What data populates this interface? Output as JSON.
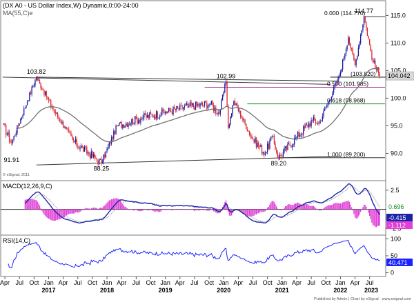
{
  "header": {
    "title": "(DX A0 - US Dollar Index,W) Dynamic,0:00-24:00",
    "ma_label": "MA(55,C)e",
    "copyright": "© eSignal, 2011"
  },
  "footer": {
    "published": "Published by Admin | Chart by eSignal · www.esignal.com"
  },
  "colors": {
    "up": "#1a1aa0",
    "down": "#e0242c",
    "ma": "#707070",
    "macd": "#1a23a6",
    "signal": "#a8a8a8",
    "hist": "#e040d8",
    "rsi": "#1a23ff",
    "fib500": "#a020a0",
    "fib618": "#1a8a1a",
    "trend": "#333333"
  },
  "chart_data": [
    {
      "type": "candlestick",
      "name": "price",
      "y_ticks": [
        90,
        95,
        100,
        105,
        110,
        115
      ],
      "ylim": [
        87.8,
        116.8
      ],
      "x_tick_labels": [
        "Apr",
        "Jul",
        "Oct",
        "Jan",
        "Apr",
        "Jul",
        "Oct",
        "Jan",
        "Apr",
        "Jul",
        "Oct",
        "Jan",
        "Apr",
        "Jul",
        "Oct",
        "Jan",
        "Apr",
        "Jul",
        "Oct",
        "Jan",
        "Apr",
        "Jul",
        "Oct",
        "Jan",
        "Apr",
        "Jul",
        "Oct",
        "Jan"
      ],
      "year_labels": [
        "2017",
        "2018",
        "2019",
        "2020",
        "2021",
        "2022",
        "2023"
      ],
      "last_price": "104.042",
      "pivots": [
        {
          "t": 0,
          "v": 95.2
        },
        {
          "t": 8,
          "v": 91.91
        },
        {
          "t": 22,
          "v": 99.5
        },
        {
          "t": 30,
          "v": 103.82
        },
        {
          "t": 45,
          "v": 98.0
        },
        {
          "t": 64,
          "v": 92.0
        },
        {
          "t": 82,
          "v": 89.2
        },
        {
          "t": 88,
          "v": 88.25
        },
        {
          "t": 102,
          "v": 95.0
        },
        {
          "t": 125,
          "v": 96.5
        },
        {
          "t": 145,
          "v": 97.5
        },
        {
          "t": 165,
          "v": 98.5
        },
        {
          "t": 185,
          "v": 99.0
        },
        {
          "t": 193,
          "v": 97.2
        },
        {
          "t": 199,
          "v": 102.99
        },
        {
          "t": 201,
          "v": 94.6
        },
        {
          "t": 206,
          "v": 99.5
        },
        {
          "t": 222,
          "v": 92.8
        },
        {
          "t": 234,
          "v": 90.0
        },
        {
          "t": 240,
          "v": 93.0
        },
        {
          "t": 246,
          "v": 89.2
        },
        {
          "t": 262,
          "v": 93.0
        },
        {
          "t": 276,
          "v": 96.0
        },
        {
          "t": 282,
          "v": 95.5
        },
        {
          "t": 300,
          "v": 104.0
        },
        {
          "t": 308,
          "v": 111.0
        },
        {
          "t": 314,
          "v": 106.0
        },
        {
          "t": 322,
          "v": 114.77
        },
        {
          "t": 330,
          "v": 106.5
        },
        {
          "t": 336,
          "v": 104.04
        }
      ],
      "annotations": [
        {
          "text": "91.91",
          "t": 8,
          "v": 91.91
        },
        {
          "text": "103.82",
          "t": 30,
          "v": 103.82
        },
        {
          "text": "88.25",
          "t": 88,
          "v": 88.25
        },
        {
          "text": "102.99",
          "t": 199,
          "v": 102.99
        },
        {
          "text": "89.20",
          "t": 246,
          "v": 89.2
        },
        {
          "text": "114.77",
          "t": 322,
          "v": 114.77
        }
      ],
      "fib_levels": [
        {
          "text": "0.000 (114.770)",
          "v": 114.77
        },
        {
          "text": "(103.820)",
          "v": 103.82
        },
        {
          "text": "0.500 (101.985)",
          "v": 101.985
        },
        {
          "text": "0.618 (98.968)",
          "v": 98.968
        },
        {
          "text": "1.000 (89.200)",
          "v": 89.2
        }
      ],
      "trendlines": [
        {
          "t1": 0,
          "v1": 103.82,
          "t2": 292,
          "v2": 102.5
        },
        {
          "t1": 30,
          "v1": 103.82,
          "t2": 300,
          "v2": 103.1
        },
        {
          "t1": 30,
          "v1": 87.9,
          "t2": 302,
          "v2": 89.5
        },
        {
          "t1": 292,
          "v1": 103.82,
          "t2": 395,
          "v2": 103.82
        }
      ]
    },
    {
      "type": "line",
      "name": "macd",
      "label": "MACD(12,26,9,C)",
      "y_ticks": [
        2.5,
        0,
        -2.5
      ],
      "tick_labels": [
        "2.5",
        "",
        "-2.5"
      ],
      "ylim": [
        -2.9,
        3.2
      ],
      "values": {
        "signal": "0.696",
        "macd": "-0.415",
        "hist": "-1.112"
      }
    },
    {
      "type": "line",
      "name": "rsi",
      "label": "RSI(14,C)",
      "y_ticks": [
        100,
        50,
        0
      ],
      "ylim": [
        -5,
        105
      ],
      "value": "40.471"
    }
  ]
}
